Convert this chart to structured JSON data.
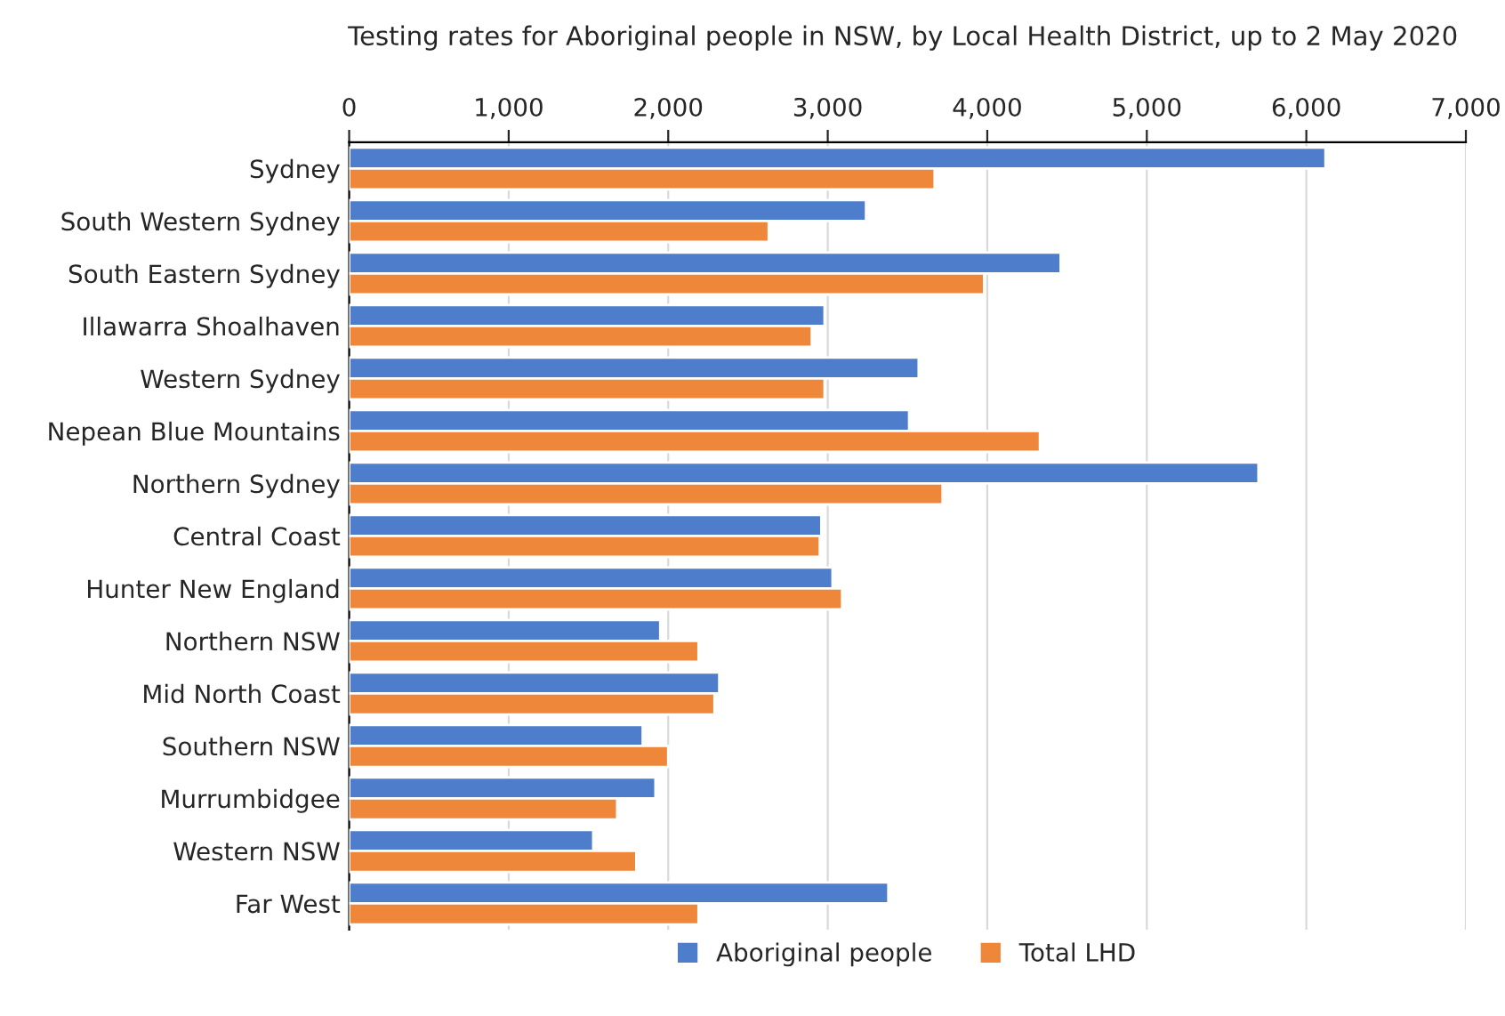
{
  "chart_data": {
    "type": "bar",
    "orientation": "horizontal",
    "title": "Testing rates for Aboriginal people in NSW, by Local Health District, up to 2 May 2020",
    "categories": [
      "Sydney",
      "South Western Sydney",
      "South Eastern Sydney",
      "Illawarra Shoalhaven",
      "Western Sydney",
      "Nepean Blue Mountains",
      "Northern Sydney",
      "Central Coast",
      "Hunter New England",
      "Northern NSW",
      "Mid North Coast",
      "Southern NSW",
      "Murrumbidgee",
      "Western NSW",
      "Far West"
    ],
    "series": [
      {
        "name": "Aboriginal people",
        "color": "#4e7ecb",
        "values": [
          6120,
          3240,
          4460,
          2980,
          3570,
          3510,
          5700,
          2960,
          3030,
          1950,
          2320,
          1840,
          1920,
          1530,
          3380
        ]
      },
      {
        "name": "Total LHD",
        "color": "#ee8739",
        "values": [
          3670,
          2630,
          3980,
          2900,
          2980,
          4330,
          3720,
          2950,
          3090,
          2190,
          2290,
          2000,
          1680,
          1800,
          2190
        ]
      }
    ],
    "xlim": [
      0,
      7000
    ],
    "xticks": [
      {
        "value": 0,
        "label": "0"
      },
      {
        "value": 1000,
        "label": "1,000"
      },
      {
        "value": 2000,
        "label": "2,000"
      },
      {
        "value": 3000,
        "label": "3,000"
      },
      {
        "value": 4000,
        "label": "4,000"
      },
      {
        "value": 5000,
        "label": "5,000"
      },
      {
        "value": 6000,
        "label": "6,000"
      },
      {
        "value": 7000,
        "label": "7,000"
      }
    ],
    "grid": "x",
    "legend": "bottom"
  }
}
